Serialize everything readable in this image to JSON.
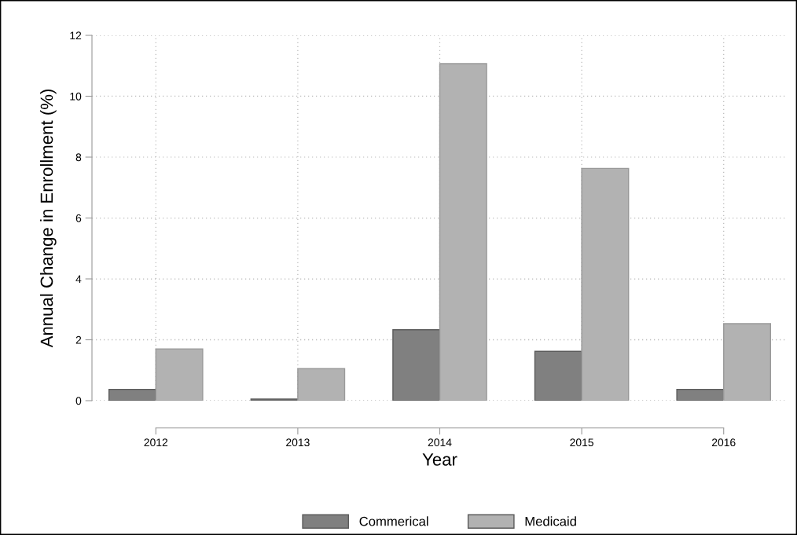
{
  "chart_data": {
    "type": "bar",
    "xlabel": "Year",
    "ylabel": "Annual Change in Enrollment (%)",
    "x": [
      2012,
      2013,
      2014,
      2015,
      2016
    ],
    "series": [
      {
        "name": "Commerical",
        "color": "#808080",
        "values": [
          0.37,
          0.05,
          2.33,
          1.62,
          0.37
        ]
      },
      {
        "name": "Medicaid",
        "color": "#b2b2b2",
        "values": [
          1.7,
          1.05,
          11.07,
          7.63,
          2.53
        ]
      }
    ],
    "xlim": [
      2011.55,
      2016.45
    ],
    "xticks": [
      2012,
      2013,
      2014,
      2015,
      2016
    ],
    "ylim": [
      0,
      12
    ],
    "yticks": [
      0,
      2,
      4,
      6,
      8,
      10,
      12
    ],
    "grid": true,
    "legend": "bottom"
  }
}
